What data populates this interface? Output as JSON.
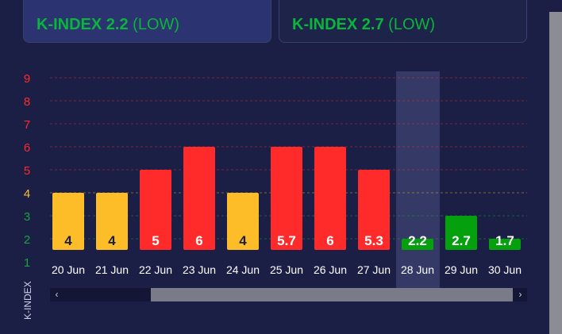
{
  "cards": [
    {
      "value": "K-INDEX 2.2",
      "status": "(LOW)"
    },
    {
      "value": "K-INDEX 2.7",
      "status": "(LOW)"
    }
  ],
  "scroll": {
    "left_icon": "chevron-left-icon",
    "right_icon": "chevron-right-icon"
  },
  "colors": {
    "red": "#ff2b2b",
    "yellow": "#fcbd28",
    "green": "#05a00e",
    "background": "#1b1f45",
    "highlight": "#343966"
  },
  "chart_data": {
    "type": "bar",
    "categories": [
      "20 Jun",
      "21 Jun",
      "22 Jun",
      "23 Jun",
      "24 Jun",
      "25 Jun",
      "26 Jun",
      "27 Jun",
      "28 Jun",
      "29 Jun",
      "30 Jun"
    ],
    "values": [
      4,
      4,
      5,
      6,
      4,
      6,
      6,
      5,
      2,
      3,
      2
    ],
    "labels": [
      "4",
      "4",
      "5",
      "6",
      "4",
      "5.7",
      "6",
      "5.3",
      "2.2",
      "2.7",
      "1.7"
    ],
    "bar_colors": [
      "#fcbd28",
      "#fcbd28",
      "#ff2b2b",
      "#ff2b2b",
      "#fcbd28",
      "#ff2b2b",
      "#ff2b2b",
      "#ff2b2b",
      "#05a00e",
      "#05a00e",
      "#05a00e"
    ],
    "highlight_index": 8,
    "ylabel": "K-INDEX",
    "yticks": [
      "1",
      "2",
      "3",
      "4",
      "5",
      "6",
      "7",
      "8",
      "9"
    ],
    "ytick_colors": [
      "#1aa53a",
      "#1aa53a",
      "#1aa53a",
      "#fcbd28",
      "#ff2b2b",
      "#ff2b2b",
      "#ff2b2b",
      "#ff2b2b",
      "#ff2b2b"
    ],
    "ylim": [
      1,
      9
    ],
    "grid": true
  }
}
